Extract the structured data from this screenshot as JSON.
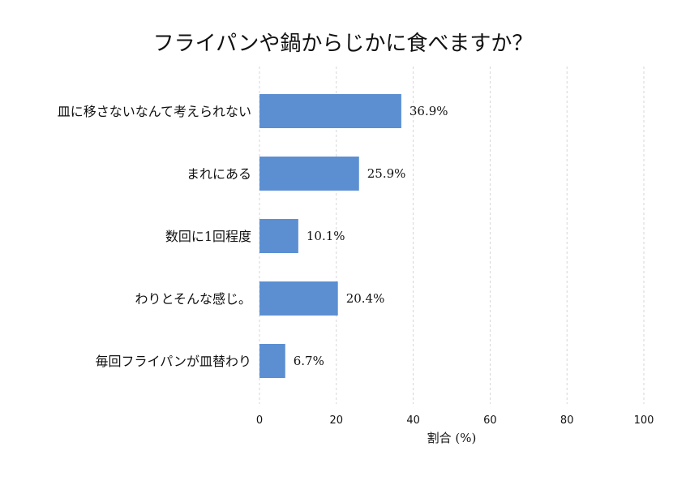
{
  "chart_data": {
    "type": "bar",
    "orientation": "horizontal",
    "title": "フライパンや鍋からじかに食べますか？",
    "xlabel": "割合 (%)",
    "ylabel": "",
    "xlim": [
      0,
      100
    ],
    "xticks": [
      0,
      20,
      40,
      60,
      80,
      100
    ],
    "grid": "vertical dashed",
    "categories": [
      "皿に移さないなんて考えられない",
      "まれにある",
      "数回に1回程度",
      "わりとそんな感じ。",
      "毎回フライパンが皿替わり"
    ],
    "values": [
      36.9,
      25.9,
      10.1,
      20.4,
      6.7
    ],
    "value_labels": [
      "36.9%",
      "25.9%",
      "10.1%",
      "20.4%",
      "6.7%"
    ],
    "bar_color": "#5b8fd2",
    "grid_color": "#cccccc"
  }
}
